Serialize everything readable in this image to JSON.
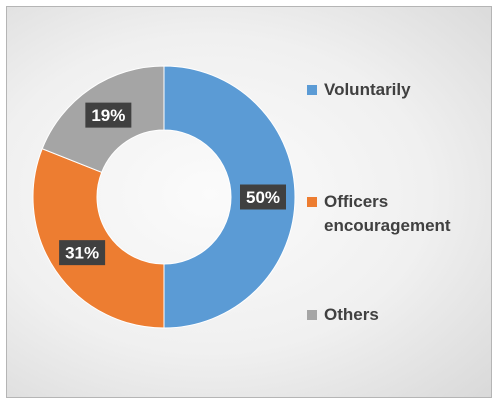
{
  "chart_data": {
    "type": "pie",
    "donut": true,
    "categories": [
      "Voluntarily",
      "Officers encouragement",
      "Others"
    ],
    "values": [
      50,
      31,
      19
    ],
    "value_labels": [
      "50%",
      "31%",
      "19%"
    ],
    "colors": [
      "#5b9bd5",
      "#ed7d31",
      "#a5a5a5"
    ],
    "legend_position": "right",
    "title": ""
  },
  "legend": [
    {
      "label_lines": [
        "Voluntarily"
      ],
      "color": "#5b9bd5"
    },
    {
      "label_lines": [
        "Officers",
        "encouragement"
      ],
      "color": "#ed7d31"
    },
    {
      "label_lines": [
        "Others"
      ],
      "color": "#a5a5a5"
    }
  ]
}
